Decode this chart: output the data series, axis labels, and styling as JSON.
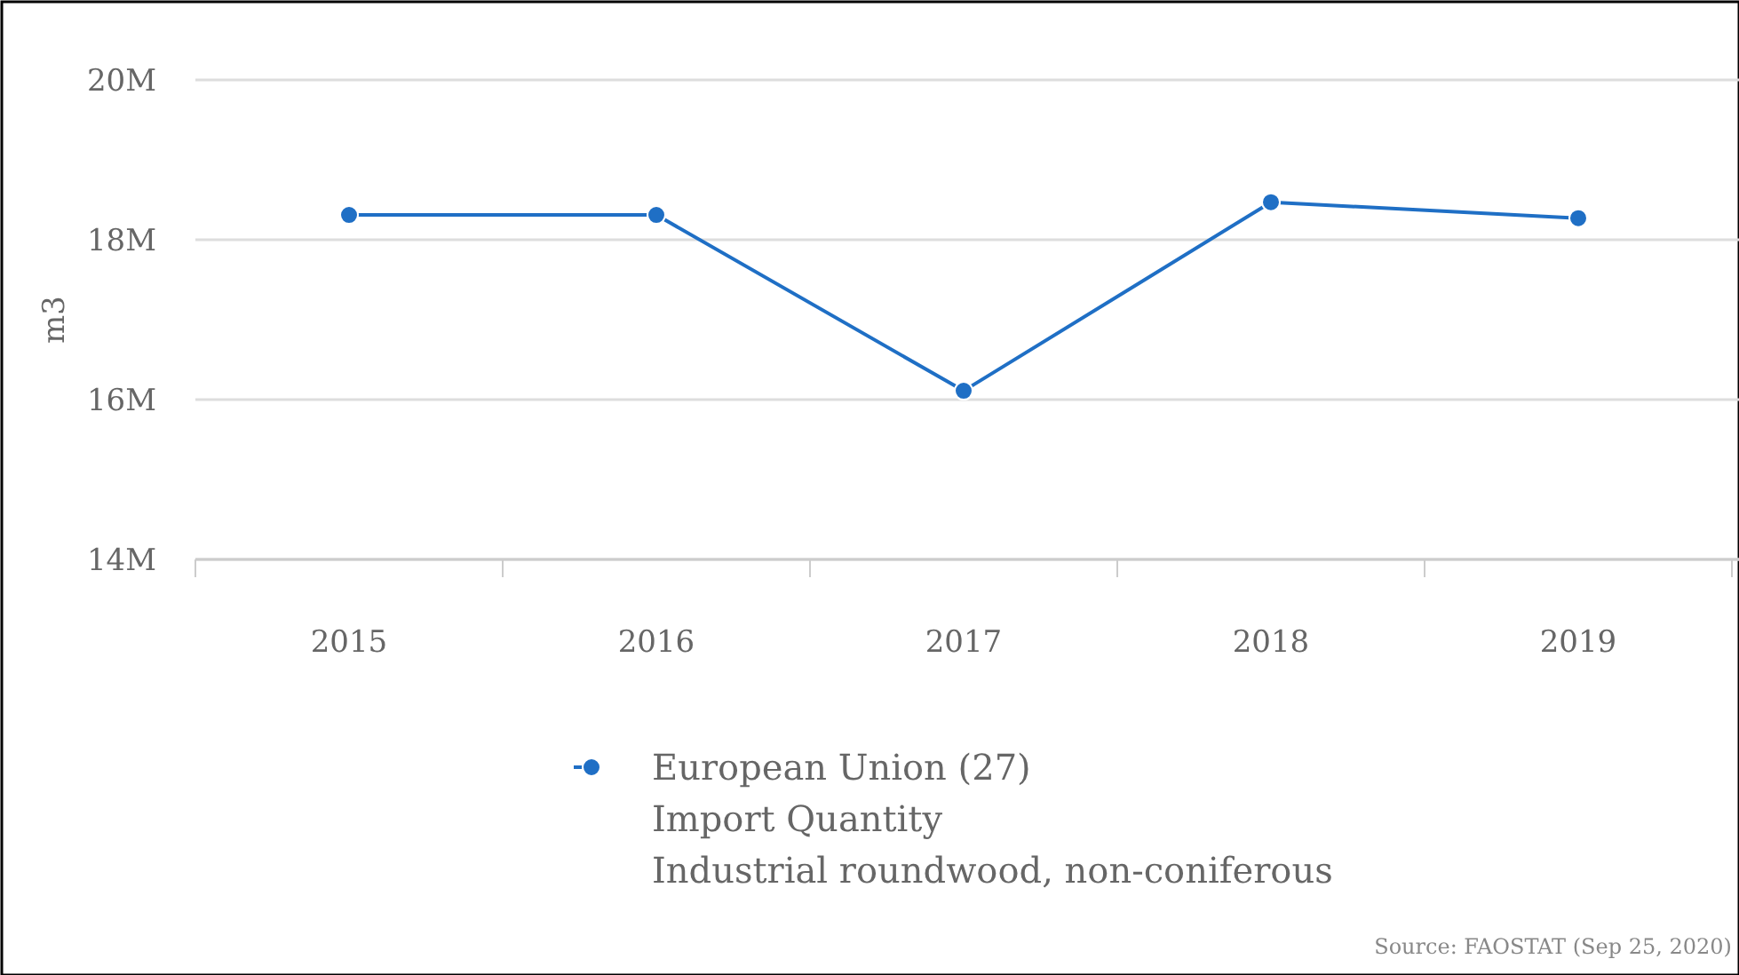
{
  "chart_data": {
    "type": "line",
    "categories": [
      "2015",
      "2016",
      "2017",
      "2018",
      "2019"
    ],
    "series": [
      {
        "name": "European Union (27)\nImport Quantity\nIndustrial roundwood, non-coniferous",
        "color": "#1f6fc5",
        "values": [
          18.31,
          18.31,
          16.11,
          18.47,
          18.27
        ]
      }
    ],
    "ylabel": "m3",
    "ylim": [
      14,
      20
    ],
    "yticks": [
      {
        "value": 14,
        "label": "14M"
      },
      {
        "value": 16,
        "label": "16M"
      },
      {
        "value": 18,
        "label": "18M"
      },
      {
        "value": 20,
        "label": "20M"
      }
    ],
    "grid": "y",
    "legend": "bottom",
    "marker": "circle",
    "line_style": "solid",
    "annotations": [
      "Source: FAOSTAT (Sep 25, 2020)"
    ]
  }
}
